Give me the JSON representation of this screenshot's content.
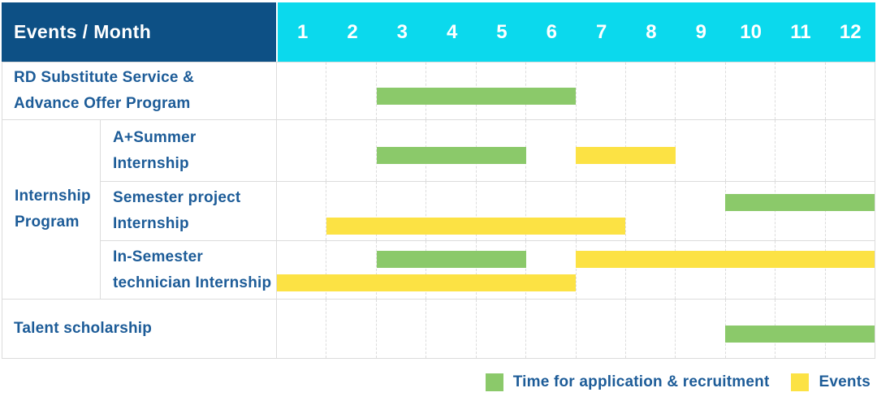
{
  "chart_data": {
    "type": "table",
    "subtype": "gantt-schedule",
    "header_label": "Events / Month",
    "months": [
      "1",
      "2",
      "3",
      "4",
      "5",
      "6",
      "7",
      "8",
      "9",
      "10",
      "11",
      "12"
    ],
    "x_range": [
      1,
      12
    ],
    "group_label": "Internship\nProgram",
    "rows": [
      {
        "id": "rd-substitute-advance-offer",
        "group": null,
        "label": "RD Substitute Service &\nAdvance Offer Program",
        "bars": [
          {
            "kind": "application",
            "start_month": 3,
            "end_month": 6,
            "line": 0
          }
        ]
      },
      {
        "id": "a-plus-summer-internship",
        "group": "internship-program",
        "label": "A+Summer\nInternship",
        "bars": [
          {
            "kind": "application",
            "start_month": 3,
            "end_month": 5,
            "line": 0
          },
          {
            "kind": "event",
            "start_month": 7,
            "end_month": 8,
            "line": 0
          }
        ]
      },
      {
        "id": "semester-project-internship",
        "group": "internship-program",
        "label": "Semester project\nInternship",
        "bars": [
          {
            "kind": "application",
            "start_month": 10,
            "end_month": 12,
            "line": 0
          },
          {
            "kind": "event",
            "start_month": 2,
            "end_month": 7,
            "line": 1
          }
        ]
      },
      {
        "id": "in-semester-technician-internship",
        "group": "internship-program",
        "label": "In-Semester\ntechnician Internship",
        "bars": [
          {
            "kind": "application",
            "start_month": 3,
            "end_month": 5,
            "line": 0
          },
          {
            "kind": "event",
            "start_month": 7,
            "end_month": 12,
            "line": 0
          },
          {
            "kind": "event",
            "start_month": 1,
            "end_month": 6,
            "line": 1
          }
        ]
      },
      {
        "id": "talent-scholarship",
        "group": null,
        "label": "Talent scholarship",
        "bars": [
          {
            "kind": "application",
            "start_month": 10,
            "end_month": 12,
            "line": 0
          }
        ]
      }
    ],
    "legend": [
      {
        "kind": "application",
        "label": "Time for application & recruitment"
      },
      {
        "kind": "event",
        "label": "Events"
      }
    ],
    "colors": {
      "application": "#8BC96A",
      "event": "#FCE244",
      "header_bg": "#0D5085",
      "months_bg": "#0BD9ED",
      "header_text": "#FFFFFF",
      "label_text": "#1D5C98",
      "grid": "#DCDCDC"
    }
  }
}
